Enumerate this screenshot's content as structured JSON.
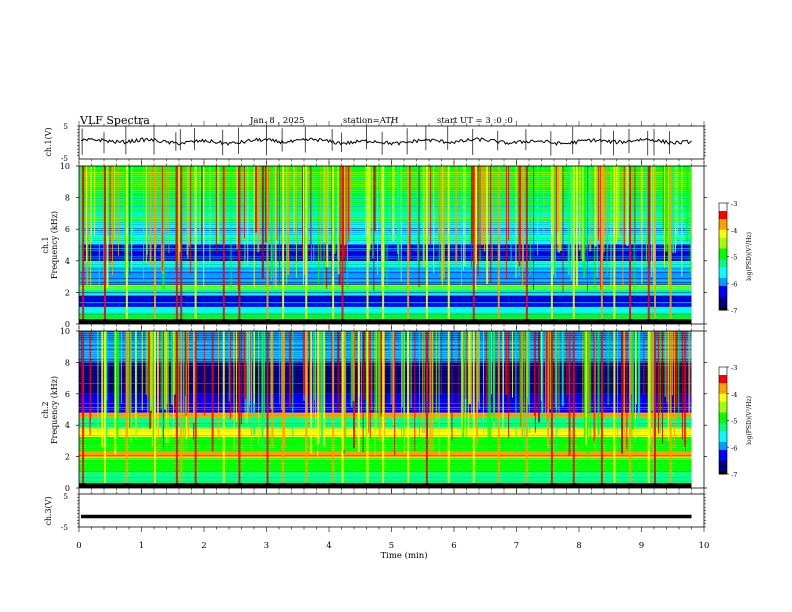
{
  "header": {
    "title": "VLF  Spectra",
    "date": "Jan. 8  , 2025",
    "station": "station=ATH",
    "start": "start  UT  =   3  :0  :0"
  },
  "chart_data": [
    {
      "type": "line",
      "name": "ch1-waveform",
      "ylabel": "ch.1(V)",
      "ylim": [
        -5,
        5
      ],
      "yticks": [
        "5",
        "-5"
      ],
      "xlim": [
        0,
        10
      ],
      "baseline_value": 0.3,
      "spike_minutes": [
        0.05,
        0.4,
        0.75,
        1.2,
        1.55,
        1.62,
        1.85,
        2.3,
        2.55,
        3.0,
        3.25,
        3.62,
        4.05,
        4.2,
        4.6,
        4.85,
        5.25,
        5.55,
        5.9,
        6.3,
        6.7,
        7.15,
        7.55,
        7.9,
        8.35,
        8.55,
        8.8,
        9.1,
        9.2,
        9.45
      ]
    },
    {
      "type": "heatmap",
      "name": "ch1-spectrogram",
      "ylabel": "ch.1\nFrequency  (kHz)",
      "yticks": [
        "0",
        "2",
        "4",
        "6",
        "8",
        "10"
      ],
      "ylim": [
        0,
        10
      ],
      "xlim": [
        0,
        9.8
      ],
      "colorbar": {
        "label": "log(PSD)(V²/Hz)",
        "ticks": [
          "-3",
          "-4",
          "-5",
          "-6",
          "-7"
        ],
        "range": [
          -7,
          -3
        ]
      },
      "bands_khz": [
        {
          "from": 0.0,
          "to": 0.3,
          "level": -7.0
        },
        {
          "from": 0.3,
          "to": 0.7,
          "level": -5.0
        },
        {
          "from": 0.7,
          "to": 1.1,
          "level": -5.6
        },
        {
          "from": 1.1,
          "to": 1.8,
          "level": -6.2
        },
        {
          "from": 1.8,
          "to": 2.2,
          "level": -5.3
        },
        {
          "from": 2.2,
          "to": 2.5,
          "level": -4.6
        },
        {
          "from": 2.5,
          "to": 3.0,
          "level": -6.0
        },
        {
          "from": 3.0,
          "to": 3.6,
          "level": -5.8
        },
        {
          "from": 3.6,
          "to": 4.0,
          "level": -5.4
        },
        {
          "from": 4.0,
          "to": 5.0,
          "level": -6.3
        },
        {
          "from": 5.0,
          "to": 6.5,
          "level": -5.7
        },
        {
          "from": 6.5,
          "to": 8.0,
          "level": -5.3
        },
        {
          "from": 8.0,
          "to": 10.0,
          "level": -4.9
        }
      ]
    },
    {
      "type": "heatmap",
      "name": "ch2-spectrogram",
      "ylabel": "ch.2\nFrequency  (kHz)",
      "yticks": [
        "0",
        "2",
        "4",
        "6",
        "8",
        "10"
      ],
      "ylim": [
        0,
        10
      ],
      "xlim": [
        0,
        9.8
      ],
      "colorbar": {
        "label": "log(PSD)(V²/Hz)",
        "ticks": [
          "-3",
          "-4",
          "-5",
          "-6",
          "-7"
        ],
        "range": [
          -7,
          -3
        ]
      },
      "bands_khz": [
        {
          "from": 0.0,
          "to": 0.3,
          "level": -7.0
        },
        {
          "from": 0.3,
          "to": 1.0,
          "level": -5.2
        },
        {
          "from": 1.0,
          "to": 1.9,
          "level": -5.0
        },
        {
          "from": 1.9,
          "to": 2.3,
          "level": -3.8
        },
        {
          "from": 2.3,
          "to": 3.2,
          "level": -5.0
        },
        {
          "from": 3.2,
          "to": 3.8,
          "level": -4.2
        },
        {
          "from": 3.8,
          "to": 4.5,
          "level": -5.2
        },
        {
          "from": 4.5,
          "to": 4.8,
          "level": -3.9
        },
        {
          "from": 4.8,
          "to": 6.0,
          "level": -6.3
        },
        {
          "from": 6.0,
          "to": 8.0,
          "level": -6.5
        },
        {
          "from": 8.0,
          "to": 10.0,
          "level": -5.8
        }
      ]
    },
    {
      "type": "line",
      "name": "ch3-waveform",
      "ylabel": "ch.3(V)",
      "ylim": [
        -5,
        5
      ],
      "yticks": [
        "5",
        "-5"
      ],
      "xlim": [
        0,
        10
      ],
      "baseline_value": -1.8
    }
  ],
  "time_axis": {
    "label": "Time  (min)",
    "ticks": [
      "0",
      "1",
      "2",
      "3",
      "4",
      "5",
      "6",
      "7",
      "8",
      "9",
      "10"
    ]
  },
  "colors": {
    "colormap": [
      "#000000",
      "#000080",
      "#0000ff",
      "#00a0ff",
      "#00ffff",
      "#00ff80",
      "#00ff00",
      "#a0ff00",
      "#ffff00",
      "#ffa000",
      "#ff0000",
      "#c00000",
      "#ffffff"
    ]
  }
}
